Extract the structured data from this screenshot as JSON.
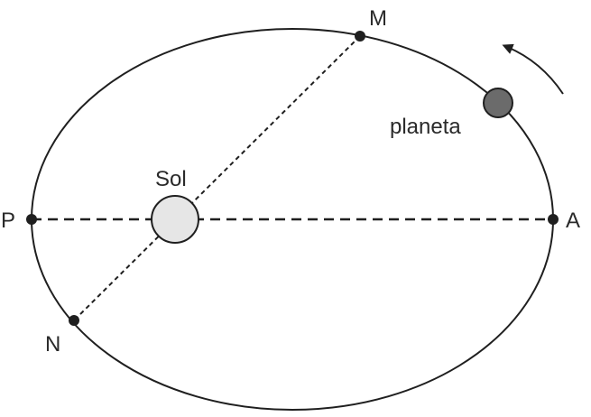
{
  "labels": {
    "point_m": "M",
    "point_n": "N",
    "point_p": "P",
    "point_a": "A",
    "sun": "Sol",
    "planet": "planeta"
  },
  "colors": {
    "stroke": "#1f1f1f",
    "sun_fill": "#e6e6e6",
    "planet_fill": "#6b6b6b",
    "text": "#2a2a2a"
  },
  "icons": {
    "motion_direction": "curved-arrow-icon"
  }
}
